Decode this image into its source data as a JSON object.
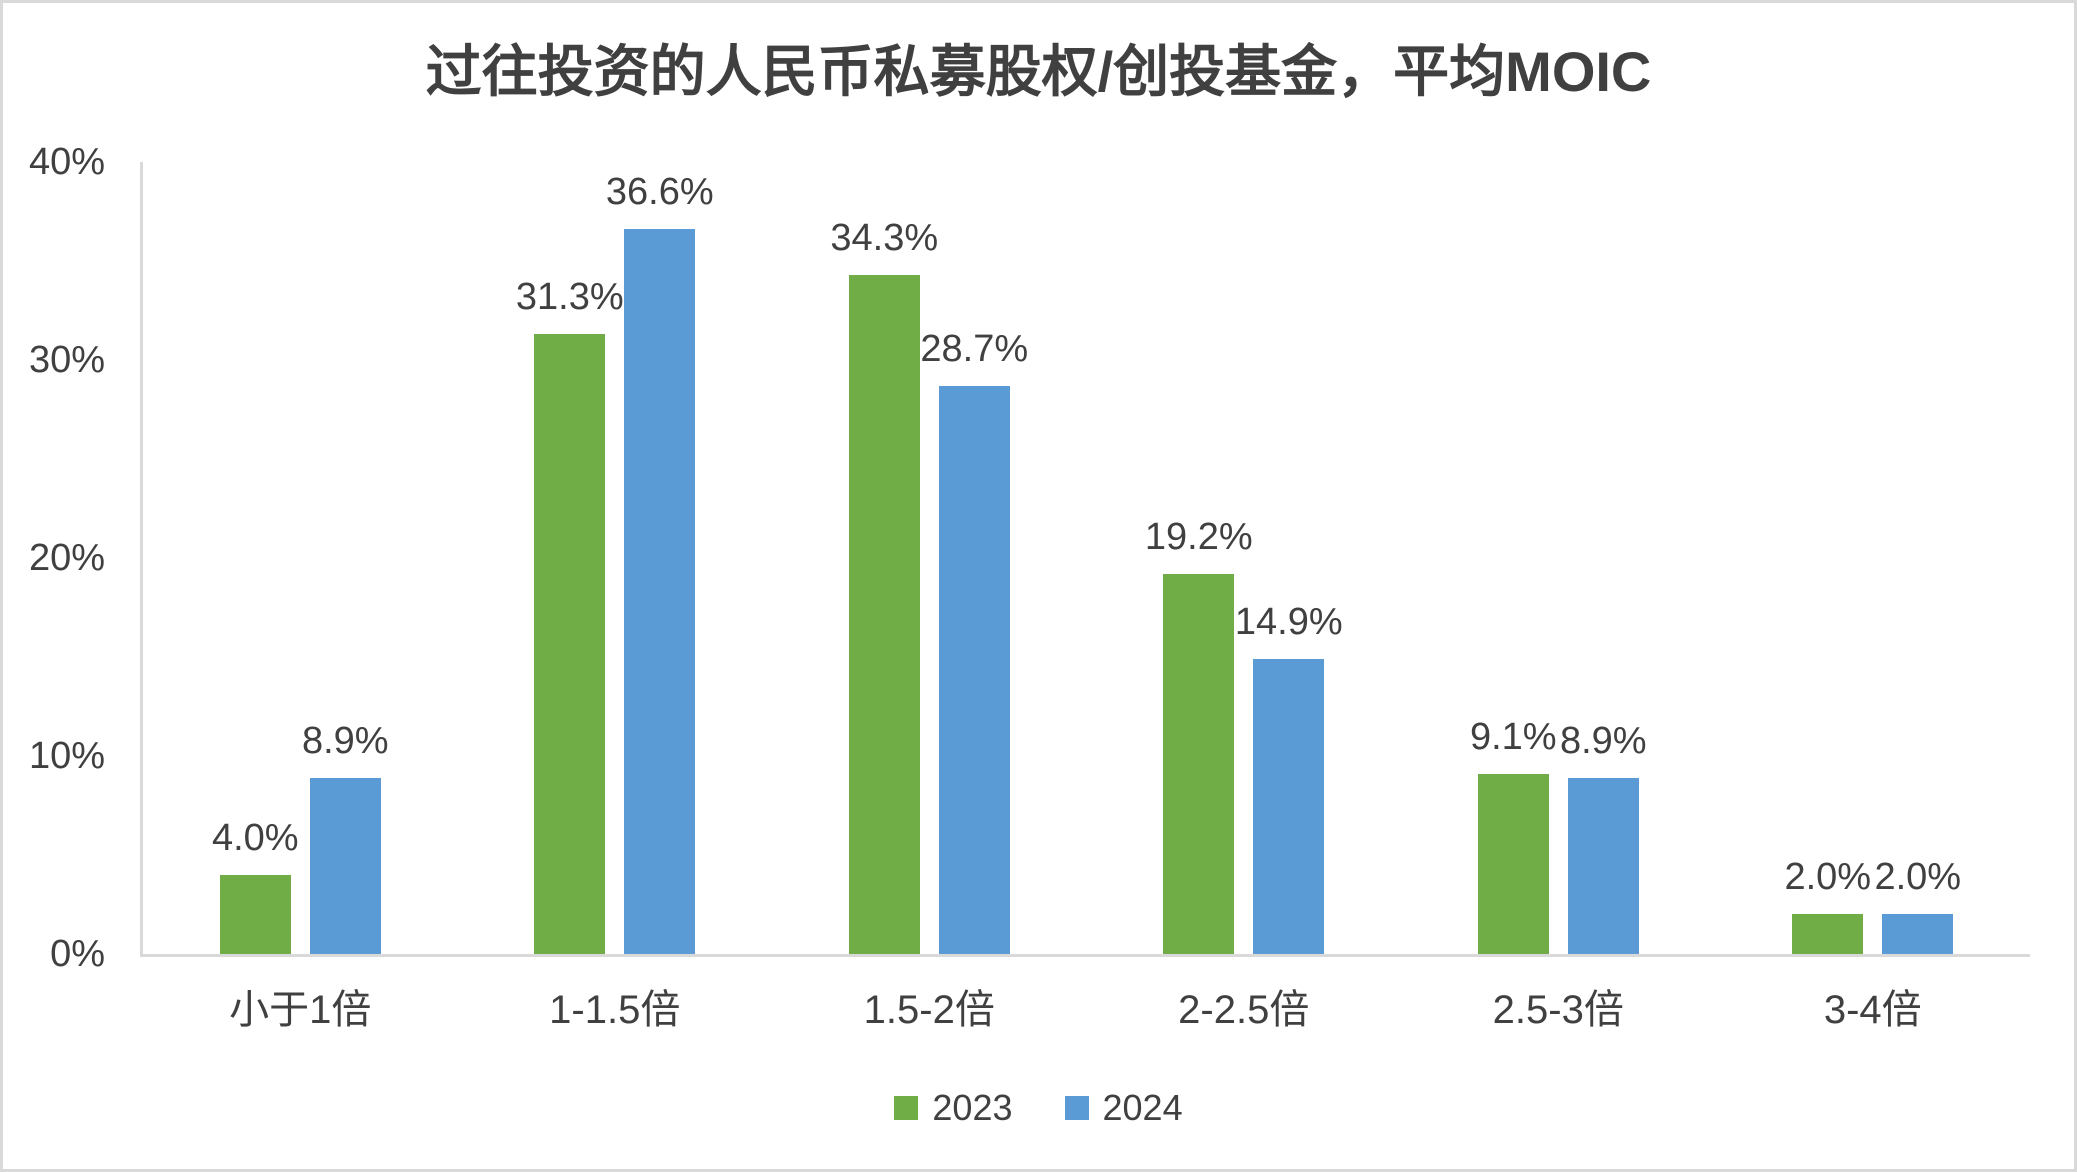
{
  "title": "过往投资的人民币私募股权/创投基金，平均MOIC",
  "colors": {
    "text": "#404040",
    "axis": "#D9D9D9",
    "background": "#FFFFFF",
    "series_2023": "#70AD47",
    "series_2024": "#5B9BD5"
  },
  "chart_data": {
    "type": "bar",
    "title": "过往投资的人民币私募股权/创投基金，平均MOIC",
    "categories": [
      "小于1倍",
      "1-1.5倍",
      "1.5-2倍",
      "2-2.5倍",
      "2.5-3倍",
      "3-4倍"
    ],
    "series": [
      {
        "name": "2023",
        "color": "#70AD47",
        "values": [
          4.0,
          31.3,
          34.3,
          19.2,
          9.1,
          2.0
        ],
        "labels": [
          "4.0%",
          "31.3%",
          "34.3%",
          "19.2%",
          "9.1%",
          "2.0%"
        ]
      },
      {
        "name": "2024",
        "color": "#5B9BD5",
        "values": [
          8.9,
          36.6,
          28.7,
          14.9,
          8.9,
          2.0
        ],
        "labels": [
          "8.9%",
          "36.6%",
          "28.7%",
          "14.9%",
          "8.9%",
          "2.0%"
        ]
      }
    ],
    "xlabel": "",
    "ylabel": "",
    "ylim": [
      0,
      40
    ],
    "y_ticks": [
      "0%",
      "10%",
      "20%",
      "30%",
      "40%"
    ],
    "y_tick_values": [
      0,
      10,
      20,
      30,
      40
    ],
    "grid": false,
    "data_labels": "outside-end",
    "legend_position": "bottom",
    "legend": [
      "2023",
      "2024"
    ]
  }
}
